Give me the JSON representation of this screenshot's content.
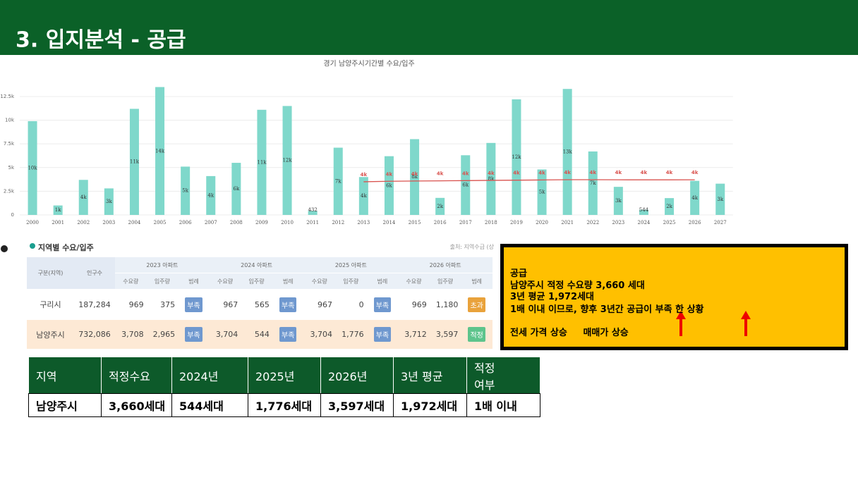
{
  "header": {
    "title": "3. 입지분석 - 공급"
  },
  "chart_data": {
    "type": "bar",
    "title": "경기 남양주시기간별 수요/입주",
    "categories": [
      "2000",
      "2001",
      "2002",
      "2003",
      "2004",
      "2005",
      "2006",
      "2007",
      "2008",
      "2009",
      "2010",
      "2011",
      "2012",
      "2013",
      "2014",
      "2015",
      "2016",
      "2017",
      "2018",
      "2019",
      "2020",
      "2021",
      "2022",
      "2023",
      "2024",
      "2025",
      "2026",
      "2027"
    ],
    "series": [
      {
        "type": "bar",
        "color": "#7fd8cb",
        "values": [
          9900,
          1000,
          3700,
          2800,
          11200,
          13500,
          5100,
          4100,
          5500,
          11100,
          11500,
          432,
          7100,
          4000,
          6200,
          8000,
          1800,
          6300,
          7600,
          12200,
          4800,
          13300,
          6700,
          2965,
          544,
          1776,
          3597,
          3300
        ],
        "value_labels": [
          "10k",
          "1k",
          "4k",
          "3k",
          "11k",
          "14k",
          "5k",
          "4k",
          "6k",
          "11k",
          "12k",
          "432",
          "7k",
          "4k",
          "6k",
          "8k",
          "2k",
          "6k",
          "8k",
          "12k",
          "5k",
          "13k",
          "7k",
          "3k",
          "544",
          "2k",
          "4k",
          "3k"
        ]
      },
      {
        "type": "line",
        "color": "#d9534f",
        "values": [
          null,
          null,
          null,
          null,
          null,
          null,
          null,
          null,
          null,
          null,
          null,
          null,
          null,
          3500,
          3550,
          3580,
          3600,
          3620,
          3650,
          3670,
          3690,
          3720,
          3720,
          3708,
          3704,
          3704,
          3712,
          null
        ],
        "value_labels": [
          null,
          null,
          null,
          null,
          null,
          null,
          null,
          null,
          null,
          null,
          null,
          null,
          null,
          "4k",
          "4k",
          "4k",
          "4k",
          "4k",
          "4k",
          "4k",
          "4k",
          "4k",
          "4k",
          "4k",
          "4k",
          "4k",
          "4k",
          null
        ]
      }
    ],
    "ylim": [
      0,
      14000
    ],
    "yticks": [
      0,
      {
        "value": 2500,
        "label": "2.5k"
      },
      {
        "value": 5000,
        "label": "5k"
      },
      {
        "value": 7500,
        "label": "7.5k"
      },
      {
        "value": 10000,
        "label": "10k"
      },
      {
        "value": 12500,
        "label": "12.5k"
      }
    ],
    "grid": true
  },
  "region_table": {
    "title": "지역별 수요/입주",
    "source": "출처: 지역수급 (상",
    "header_groups": [
      "구분(지역)",
      "인구수",
      "2023 아파트",
      "2024 아파트",
      "2025 아파트",
      "2026 아파트"
    ],
    "sub_headers": [
      "수요량",
      "입주량",
      "범례"
    ],
    "rows": [
      {
        "region": "구리시",
        "population": "187,284",
        "years": [
          {
            "demand": "969",
            "supply": "375",
            "status": {
              "label": "부족",
              "color": "#6f98cf"
            }
          },
          {
            "demand": "967",
            "supply": "565",
            "status": {
              "label": "부족",
              "color": "#6f98cf"
            }
          },
          {
            "demand": "967",
            "supply": "0",
            "status": {
              "label": "부족",
              "color": "#6f98cf"
            }
          },
          {
            "demand": "969",
            "supply": "1,180",
            "status": {
              "label": "초과",
              "color": "#e9a23b"
            }
          }
        ]
      },
      {
        "region": "남양주시",
        "population": "732,086",
        "years": [
          {
            "demand": "3,708",
            "supply": "2,965",
            "status": {
              "label": "부족",
              "color": "#6f98cf"
            }
          },
          {
            "demand": "3,704",
            "supply": "544",
            "status": {
              "label": "부족",
              "color": "#6f98cf"
            }
          },
          {
            "demand": "3,704",
            "supply": "1,776",
            "status": {
              "label": "부족",
              "color": "#6f98cf"
            }
          },
          {
            "demand": "3,712",
            "supply": "3,597",
            "status": {
              "label": "적정",
              "color": "#5dc48c"
            }
          }
        ]
      }
    ]
  },
  "callout": {
    "lines": [
      "공급",
      "남양주시 적정 수요량 3,660 세대",
      "3년 평균 1,972세대",
      "1배 이내 이므로, 향후 3년간 공급이 부족 한 상황"
    ],
    "trend": "전세 가격 상승     매매가 상승"
  },
  "summary_table": {
    "headers": [
      "지역",
      "적정수요",
      "2024년",
      "2025년",
      "2026년",
      "3년 평균",
      "적정\n여부"
    ],
    "rows": [
      [
        "남양주시",
        "3,660세대",
        "544세대",
        "1,776세대",
        "3,597세대",
        "1,972세대",
        "1배 이내"
      ]
    ]
  }
}
